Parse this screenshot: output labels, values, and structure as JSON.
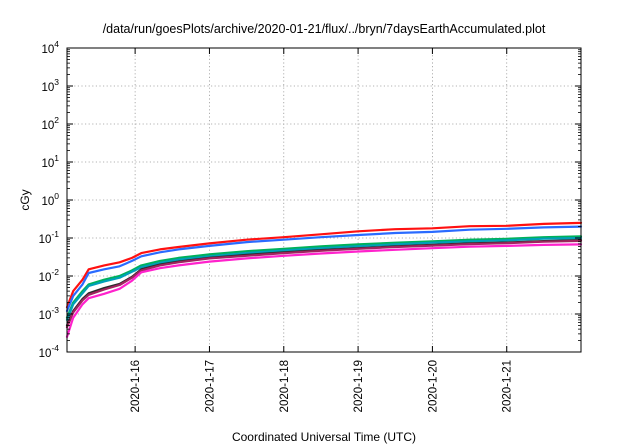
{
  "chart_data": {
    "type": "line",
    "title": "/data/run/goesPlots/archive/2020-01-21/flux/../bryn/7daysEarthAccumulated.plot",
    "xlabel": "Coordinated Universal Time (UTC)",
    "ylabel": "cGy",
    "y_scale": "log",
    "ylim": [
      0.0001,
      10000
    ],
    "xlim": [
      "2020-01-15T02:00",
      "2020-01-21T23:59"
    ],
    "grid": true,
    "y_ticks": [
      {
        "base": "10",
        "exp": "-4",
        "value": 0.0001
      },
      {
        "base": "10",
        "exp": "-3",
        "value": 0.001
      },
      {
        "base": "10",
        "exp": "-2",
        "value": 0.01
      },
      {
        "base": "10",
        "exp": "-1",
        "value": 0.1
      },
      {
        "base": "10",
        "exp": "0",
        "value": 1
      },
      {
        "base": "10",
        "exp": "1",
        "value": 10
      },
      {
        "base": "10",
        "exp": "2",
        "value": 100
      },
      {
        "base": "10",
        "exp": "3",
        "value": 1000
      },
      {
        "base": "10",
        "exp": "4",
        "value": 10000
      }
    ],
    "x_ticks": [
      {
        "label": "2020-1-16",
        "date": "2020-01-16T00:00"
      },
      {
        "label": "2020-1-17",
        "date": "2020-01-17T00:00"
      },
      {
        "label": "2020-1-18",
        "date": "2020-01-18T00:00"
      },
      {
        "label": "2020-1-19",
        "date": "2020-01-19T00:00"
      },
      {
        "label": "2020-1-20",
        "date": "2020-01-20T00:00"
      },
      {
        "label": "2020-1-21",
        "date": "2020-01-21T00:00"
      }
    ],
    "series": [
      {
        "color": "#ff1111",
        "points": [
          [
            "2020-01-15T02:00",
            0.0015
          ],
          [
            "2020-01-15T04:00",
            0.004
          ],
          [
            "2020-01-15T07:00",
            0.008
          ],
          [
            "2020-01-15T09:00",
            0.015
          ],
          [
            "2020-01-15T14:00",
            0.019
          ],
          [
            "2020-01-15T19:00",
            0.023
          ],
          [
            "2020-01-15T23:00",
            0.03
          ],
          [
            "2020-01-16T02:00",
            0.04
          ],
          [
            "2020-01-16T08:00",
            0.05
          ],
          [
            "2020-01-16T14:00",
            0.058
          ],
          [
            "2020-01-17T00:00",
            0.072
          ],
          [
            "2020-01-17T12:00",
            0.09
          ],
          [
            "2020-01-18T00:00",
            0.105
          ],
          [
            "2020-01-18T12:00",
            0.125
          ],
          [
            "2020-01-19T00:00",
            0.15
          ],
          [
            "2020-01-19T12:00",
            0.17
          ],
          [
            "2020-01-20T00:00",
            0.18
          ],
          [
            "2020-01-20T12:00",
            0.205
          ],
          [
            "2020-01-21T00:00",
            0.21
          ],
          [
            "2020-01-21T12:00",
            0.235
          ],
          [
            "2020-01-21T23:59",
            0.25
          ]
        ]
      },
      {
        "color": "#2a6bff",
        "points": [
          [
            "2020-01-15T02:00",
            0.0012
          ],
          [
            "2020-01-15T04:00",
            0.003
          ],
          [
            "2020-01-15T07:00",
            0.006
          ],
          [
            "2020-01-15T09:00",
            0.012
          ],
          [
            "2020-01-15T14:00",
            0.015
          ],
          [
            "2020-01-15T19:00",
            0.018
          ],
          [
            "2020-01-15T23:00",
            0.025
          ],
          [
            "2020-01-16T02:00",
            0.033
          ],
          [
            "2020-01-16T08:00",
            0.042
          ],
          [
            "2020-01-16T14:00",
            0.05
          ],
          [
            "2020-01-17T00:00",
            0.062
          ],
          [
            "2020-01-17T12:00",
            0.078
          ],
          [
            "2020-01-18T00:00",
            0.09
          ],
          [
            "2020-01-18T12:00",
            0.105
          ],
          [
            "2020-01-19T00:00",
            0.12
          ],
          [
            "2020-01-19T12:00",
            0.135
          ],
          [
            "2020-01-20T00:00",
            0.145
          ],
          [
            "2020-01-20T12:00",
            0.165
          ],
          [
            "2020-01-21T00:00",
            0.175
          ],
          [
            "2020-01-21T12:00",
            0.19
          ],
          [
            "2020-01-21T23:59",
            0.2
          ]
        ]
      },
      {
        "color": "#00b15a",
        "points": [
          [
            "2020-01-15T02:00",
            0.0008
          ],
          [
            "2020-01-15T04:00",
            0.002
          ],
          [
            "2020-01-15T07:00",
            0.004
          ],
          [
            "2020-01-15T09:00",
            0.006
          ],
          [
            "2020-01-15T14:00",
            0.008
          ],
          [
            "2020-01-15T19:00",
            0.01
          ],
          [
            "2020-01-15T23:00",
            0.014
          ],
          [
            "2020-01-16T02:00",
            0.019
          ],
          [
            "2020-01-16T08:00",
            0.025
          ],
          [
            "2020-01-16T14:00",
            0.03
          ],
          [
            "2020-01-17T00:00",
            0.037
          ],
          [
            "2020-01-17T12:00",
            0.045
          ],
          [
            "2020-01-18T00:00",
            0.052
          ],
          [
            "2020-01-18T12:00",
            0.06
          ],
          [
            "2020-01-19T00:00",
            0.068
          ],
          [
            "2020-01-19T12:00",
            0.075
          ],
          [
            "2020-01-20T00:00",
            0.082
          ],
          [
            "2020-01-20T12:00",
            0.09
          ],
          [
            "2020-01-21T00:00",
            0.095
          ],
          [
            "2020-01-21T12:00",
            0.105
          ],
          [
            "2020-01-21T23:59",
            0.11
          ]
        ]
      },
      {
        "color": "#00a0b8",
        "points": [
          [
            "2020-01-15T02:00",
            0.0007
          ],
          [
            "2020-01-15T04:00",
            0.0018
          ],
          [
            "2020-01-15T07:00",
            0.0035
          ],
          [
            "2020-01-15T09:00",
            0.0055
          ],
          [
            "2020-01-15T14:00",
            0.0072
          ],
          [
            "2020-01-15T19:00",
            0.009
          ],
          [
            "2020-01-15T23:00",
            0.013
          ],
          [
            "2020-01-16T02:00",
            0.017
          ],
          [
            "2020-01-16T08:00",
            0.022
          ],
          [
            "2020-01-16T14:00",
            0.027
          ],
          [
            "2020-01-17T00:00",
            0.033
          ],
          [
            "2020-01-17T12:00",
            0.04
          ],
          [
            "2020-01-18T00:00",
            0.047
          ],
          [
            "2020-01-18T12:00",
            0.054
          ],
          [
            "2020-01-19T00:00",
            0.061
          ],
          [
            "2020-01-19T12:00",
            0.068
          ],
          [
            "2020-01-20T00:00",
            0.075
          ],
          [
            "2020-01-20T12:00",
            0.082
          ],
          [
            "2020-01-21T00:00",
            0.087
          ],
          [
            "2020-01-21T12:00",
            0.096
          ],
          [
            "2020-01-21T23:59",
            0.1
          ]
        ]
      },
      {
        "color": "#2b2b2b",
        "points": [
          [
            "2020-01-15T02:00",
            0.0005
          ],
          [
            "2020-01-15T04:00",
            0.0012
          ],
          [
            "2020-01-15T07:00",
            0.0025
          ],
          [
            "2020-01-15T09:00",
            0.0035
          ],
          [
            "2020-01-15T14:00",
            0.0048
          ],
          [
            "2020-01-15T19:00",
            0.0062
          ],
          [
            "2020-01-15T23:00",
            0.0095
          ],
          [
            "2020-01-16T02:00",
            0.015
          ],
          [
            "2020-01-16T08:00",
            0.02
          ],
          [
            "2020-01-16T14:00",
            0.024
          ],
          [
            "2020-01-17T00:00",
            0.03
          ],
          [
            "2020-01-17T12:00",
            0.036
          ],
          [
            "2020-01-18T00:00",
            0.042
          ],
          [
            "2020-01-18T12:00",
            0.048
          ],
          [
            "2020-01-19T00:00",
            0.054
          ],
          [
            "2020-01-19T12:00",
            0.06
          ],
          [
            "2020-01-20T00:00",
            0.066
          ],
          [
            "2020-01-20T12:00",
            0.072
          ],
          [
            "2020-01-21T00:00",
            0.076
          ],
          [
            "2020-01-21T12:00",
            0.083
          ],
          [
            "2020-01-21T23:59",
            0.088
          ]
        ]
      },
      {
        "color": "#a0245e",
        "points": [
          [
            "2020-01-15T02:00",
            0.00045
          ],
          [
            "2020-01-15T04:00",
            0.0011
          ],
          [
            "2020-01-15T07:00",
            0.0023
          ],
          [
            "2020-01-15T09:00",
            0.0032
          ],
          [
            "2020-01-15T14:00",
            0.0044
          ],
          [
            "2020-01-15T19:00",
            0.0058
          ],
          [
            "2020-01-15T23:00",
            0.009
          ],
          [
            "2020-01-16T02:00",
            0.014
          ],
          [
            "2020-01-16T08:00",
            0.019
          ],
          [
            "2020-01-16T14:00",
            0.023
          ],
          [
            "2020-01-17T00:00",
            0.029
          ],
          [
            "2020-01-17T12:00",
            0.034
          ],
          [
            "2020-01-18T00:00",
            0.04
          ],
          [
            "2020-01-18T12:00",
            0.046
          ],
          [
            "2020-01-19T00:00",
            0.052
          ],
          [
            "2020-01-19T12:00",
            0.058
          ],
          [
            "2020-01-20T00:00",
            0.063
          ],
          [
            "2020-01-20T12:00",
            0.069
          ],
          [
            "2020-01-21T00:00",
            0.073
          ],
          [
            "2020-01-21T12:00",
            0.08
          ],
          [
            "2020-01-21T23:59",
            0.084
          ]
        ]
      },
      {
        "color": "#ff22cc",
        "points": [
          [
            "2020-01-15T02:00",
            0.00025
          ],
          [
            "2020-01-15T04:00",
            0.0008
          ],
          [
            "2020-01-15T07:00",
            0.0018
          ],
          [
            "2020-01-15T09:00",
            0.0026
          ],
          [
            "2020-01-15T14:00",
            0.0034
          ],
          [
            "2020-01-15T19:00",
            0.0046
          ],
          [
            "2020-01-15T23:00",
            0.0075
          ],
          [
            "2020-01-16T02:00",
            0.0125
          ],
          [
            "2020-01-16T08:00",
            0.016
          ],
          [
            "2020-01-16T14:00",
            0.019
          ],
          [
            "2020-01-17T00:00",
            0.024
          ],
          [
            "2020-01-17T12:00",
            0.029
          ],
          [
            "2020-01-18T00:00",
            0.034
          ],
          [
            "2020-01-18T12:00",
            0.039
          ],
          [
            "2020-01-19T00:00",
            0.044
          ],
          [
            "2020-01-19T12:00",
            0.049
          ],
          [
            "2020-01-20T00:00",
            0.054
          ],
          [
            "2020-01-20T12:00",
            0.059
          ],
          [
            "2020-01-21T00:00",
            0.062
          ],
          [
            "2020-01-21T12:00",
            0.066
          ],
          [
            "2020-01-21T23:59",
            0.068
          ]
        ]
      }
    ]
  }
}
